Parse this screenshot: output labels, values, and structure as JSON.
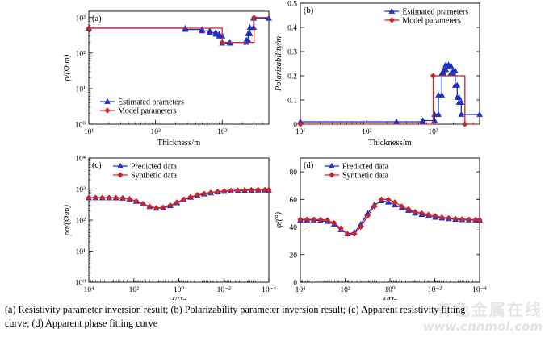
{
  "colors": {
    "blue": "#1f2fbf",
    "red": "#c8262a",
    "axis": "#000000"
  },
  "caption": {
    "line1": "(a) Resistivity parameter inversion result; (b) Polarizability parameter inversion result; (c) Apparent resistivity fitting",
    "line2": "curve; (d) Apparent phase fitting curve"
  },
  "watermark": {
    "text": "有色金属在线",
    "url": "www.cnnmol.com"
  },
  "chart_data": [
    {
      "id": "a",
      "panel_label": "(a)",
      "type": "line",
      "xscale": "log",
      "yscale": "log",
      "xlim": [
        10,
        5000
      ],
      "ylim": [
        1,
        1500
      ],
      "xticks": [
        10,
        100,
        1000
      ],
      "xtick_labels": [
        "10¹",
        "10²",
        "10³"
      ],
      "yticks": [
        1,
        10,
        100,
        1000
      ],
      "ytick_labels": [
        "10⁰",
        "10¹",
        "10²",
        "10³"
      ],
      "xlabel": "Thickness/m",
      "ylabel": "ρ/(Ω·m)",
      "legend_position": "bottom-left",
      "series": [
        {
          "name": "Estimated prameters",
          "style": "step",
          "color": "blue",
          "marker": "triangle",
          "x": [
            10,
            280,
            280,
            500,
            500,
            650,
            650,
            800,
            800,
            900,
            900,
            1000,
            1000,
            1300,
            1300,
            2300,
            2300,
            2450,
            2450,
            2600,
            2600,
            2950,
            2950,
            5000
          ],
          "y": [
            500,
            500,
            460,
            460,
            420,
            420,
            380,
            380,
            340,
            340,
            300,
            300,
            190,
            190,
            200,
            200,
            230,
            230,
            350,
            350,
            520,
            520,
            950,
            950
          ]
        },
        {
          "name": "Model parameters",
          "style": "step",
          "color": "red",
          "marker": "diamond",
          "x": [
            10,
            1000,
            1000,
            3000,
            3000,
            5000
          ],
          "y": [
            500,
            500,
            200,
            200,
            1000,
            1000
          ]
        }
      ]
    },
    {
      "id": "b",
      "panel_label": "(b)",
      "type": "line",
      "xscale": "log",
      "yscale": "linear",
      "xlim": [
        10,
        5000
      ],
      "ylim": [
        0,
        0.5
      ],
      "xticks": [
        10,
        100,
        1000
      ],
      "xtick_labels": [
        "10¹",
        "10²",
        "10³"
      ],
      "yticks": [
        0,
        0.1,
        0.2,
        0.3,
        0.4,
        0.5
      ],
      "ytick_labels": [
        "0",
        "0.1",
        "0.2",
        "0.3",
        "0.4",
        "0.5"
      ],
      "xlabel": "Thickness/m",
      "ylabel": "Polarizability/m",
      "legend_position": "top-right",
      "series": [
        {
          "name": "Estimated prameters",
          "style": "step",
          "color": "blue",
          "marker": "triangle",
          "x": [
            10,
            280,
            280,
            700,
            700,
            1050,
            1050,
            1200,
            1200,
            1350,
            1350,
            1450,
            1450,
            1550,
            1550,
            1700,
            1700,
            1850,
            1850,
            2000,
            2000,
            2150,
            2150,
            2300,
            2300,
            2450,
            2450,
            2650,
            2650,
            5000
          ],
          "y": [
            0.01,
            0.01,
            0.01,
            0.01,
            0.015,
            0.015,
            0.04,
            0.04,
            0.12,
            0.12,
            0.21,
            0.21,
            0.225,
            0.225,
            0.245,
            0.245,
            0.24,
            0.24,
            0.21,
            0.21,
            0.22,
            0.22,
            0.16,
            0.16,
            0.11,
            0.11,
            0.09,
            0.09,
            0.04,
            0.04
          ]
        },
        {
          "name": "Model parameters",
          "style": "step",
          "color": "red",
          "marker": "diamond",
          "x": [
            10,
            1000,
            1000,
            3000,
            3000,
            5000
          ],
          "y": [
            0,
            0,
            0.2,
            0.2,
            0,
            0
          ]
        }
      ]
    },
    {
      "id": "c",
      "panel_label": "(c)",
      "type": "line",
      "xscale": "log",
      "xreversed": true,
      "yscale": "log",
      "xlim": [
        10000,
        0.0001
      ],
      "ylim": [
        1,
        10000
      ],
      "xticks": [
        10000,
        100,
        1,
        0.01,
        0.0001
      ],
      "xtick_labels": [
        "10⁴",
        "10²",
        "10⁰",
        "10⁻²",
        "10⁻⁴"
      ],
      "yticks": [
        1,
        10,
        100,
        1000,
        10000
      ],
      "ytick_labels": [
        "10⁰",
        "10¹",
        "10²",
        "10³",
        "10⁴"
      ],
      "xlabel": "f/Hz",
      "ylabel": "ρa/(Ω·m)",
      "legend_position": "top-left",
      "series": [
        {
          "name": "Predicted data",
          "color": "blue",
          "marker": "triangle",
          "x": [
            10000,
            5000,
            2500,
            1250,
            625,
            312,
            156,
            78,
            39,
            20,
            10,
            5,
            2.4,
            1.2,
            0.6,
            0.3,
            0.15,
            0.076,
            0.038,
            0.019,
            0.0095,
            0.0048,
            0.0024,
            0.0012,
            0.0006,
            0.0003,
            0.00015,
            0.0001
          ],
          "y": [
            520,
            520,
            520,
            518,
            515,
            505,
            470,
            400,
            330,
            270,
            240,
            250,
            290,
            360,
            450,
            540,
            620,
            690,
            750,
            800,
            840,
            870,
            890,
            905,
            915,
            920,
            925,
            925
          ]
        },
        {
          "name": "Synthetic data",
          "color": "red",
          "marker": "diamond",
          "x": [
            10000,
            5000,
            2500,
            1250,
            625,
            312,
            156,
            78,
            39,
            20,
            10,
            5,
            2.4,
            1.2,
            0.6,
            0.3,
            0.15,
            0.076,
            0.038,
            0.019,
            0.0095,
            0.0048,
            0.0024,
            0.0012,
            0.0006,
            0.0003,
            0.00015,
            0.0001
          ],
          "y": [
            530,
            530,
            530,
            528,
            525,
            515,
            480,
            410,
            335,
            275,
            245,
            255,
            300,
            375,
            470,
            560,
            645,
            715,
            775,
            825,
            865,
            895,
            915,
            930,
            940,
            948,
            952,
            955
          ]
        }
      ]
    },
    {
      "id": "d",
      "panel_label": "(d)",
      "type": "line",
      "xscale": "log",
      "xreversed": true,
      "yscale": "linear",
      "xlim": [
        10000,
        0.0001
      ],
      "ylim": [
        0,
        90
      ],
      "xticks": [
        10000,
        100,
        1,
        0.01,
        0.0001
      ],
      "xtick_labels": [
        "10⁴",
        "10²",
        "10⁰",
        "10⁻²",
        "10⁻⁴"
      ],
      "yticks": [
        0,
        20,
        40,
        60,
        80
      ],
      "ytick_labels": [
        "0",
        "20",
        "40",
        "60",
        "80"
      ],
      "xlabel": "f/Hz",
      "ylabel": "φ/(°)",
      "legend_position": "top-left",
      "series": [
        {
          "name": "Predicted data",
          "color": "blue",
          "marker": "triangle",
          "x": [
            10000,
            5000,
            2500,
            1250,
            625,
            312,
            156,
            78,
            39,
            20,
            10,
            5,
            2.4,
            1.2,
            0.6,
            0.3,
            0.15,
            0.076,
            0.038,
            0.019,
            0.0095,
            0.0048,
            0.0024,
            0.0012,
            0.0006,
            0.0003,
            0.00015,
            0.0001
          ],
          "y": [
            45,
            45,
            45,
            44.5,
            44,
            42,
            38,
            35,
            36,
            42,
            50,
            56,
            59,
            58,
            56,
            54,
            52,
            50,
            49,
            48,
            47,
            46.5,
            46,
            45.5,
            45.3,
            45.1,
            45,
            45
          ]
        },
        {
          "name": "Synthetic data",
          "color": "red",
          "marker": "diamond",
          "x": [
            10000,
            5000,
            2500,
            1250,
            625,
            312,
            156,
            78,
            39,
            20,
            10,
            5,
            2.4,
            1.2,
            0.6,
            0.3,
            0.15,
            0.076,
            0.038,
            0.019,
            0.0095,
            0.0048,
            0.0024,
            0.0012,
            0.0006,
            0.0003,
            0.00015,
            0.0001
          ],
          "y": [
            45.5,
            45.5,
            45.5,
            45.3,
            45,
            43,
            39,
            35,
            35,
            40,
            48,
            55,
            60,
            60,
            58,
            55,
            53,
            51,
            50,
            49,
            48,
            47,
            46.5,
            46,
            45.7,
            45.5,
            45.3,
            45.2
          ]
        }
      ]
    }
  ]
}
